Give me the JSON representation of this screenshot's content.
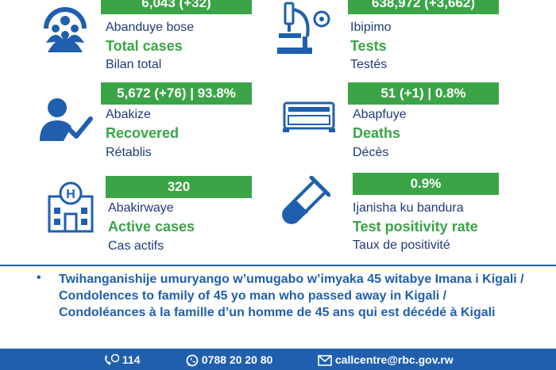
{
  "stats": {
    "total_cases": {
      "value": "6,043 (+32)",
      "rw": "Abanduye bose",
      "en": "Total cases",
      "fr": "Bilan total",
      "icon": "crowd-icon"
    },
    "tests": {
      "value": "638,972 (+3,662)",
      "rw": "Ibipimo",
      "en": "Tests",
      "fr": "Testés",
      "icon": "microscope-icon"
    },
    "recovered": {
      "value": "5,672 (+76) | 93.8%",
      "rw": "Abakize",
      "en": "Recovered",
      "fr": "Rétablis",
      "icon": "person-check-icon"
    },
    "deaths": {
      "value": "51 (+1) | 0.8%",
      "rw": "Abapfuye",
      "en": "Deaths",
      "fr": "Décès",
      "icon": "coffin-icon"
    },
    "active": {
      "value": "320",
      "rw": "Abakirwaye",
      "en": "Active cases",
      "fr": "Cas actifs",
      "icon": "hospital-icon"
    },
    "positivity": {
      "value": "0.9%",
      "rw": "Ijanisha ku bandura",
      "en": "Test positivity rate",
      "fr": "Taux de positivité",
      "icon": "test-tube-icon"
    }
  },
  "note": {
    "bullet": "•",
    "text": "Twihanganishije umuryango w’umugabo w’imyaka 45 witabye Imana i Kigali / Condolences to family of 45 yo man who passed away in Kigali / Condoléances à la famille d’un homme de 45 ans qui est décédé à Kigali"
  },
  "footer": {
    "hotline": "114",
    "phone": "0788 20 20 80",
    "email": "callcentre@rbc.gov.rw"
  },
  "colors": {
    "blue": "#1f5fae",
    "green": "#3aa446",
    "navy": "#1f3a7a"
  }
}
